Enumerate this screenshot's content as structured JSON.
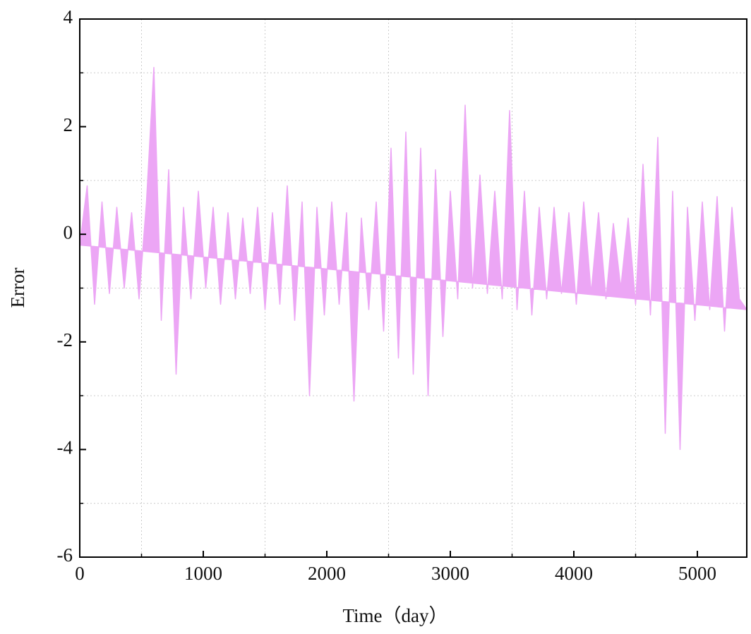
{
  "chart_data": {
    "type": "line",
    "xlabel": "Time（day）",
    "ylabel": "Error",
    "x": [
      0,
      60,
      120,
      180,
      240,
      300,
      360,
      420,
      480,
      540,
      600,
      660,
      720,
      780,
      840,
      900,
      960,
      1020,
      1080,
      1140,
      1200,
      1260,
      1320,
      1380,
      1440,
      1500,
      1560,
      1620,
      1680,
      1740,
      1800,
      1860,
      1920,
      1980,
      2040,
      2100,
      2160,
      2220,
      2280,
      2340,
      2400,
      2460,
      2520,
      2580,
      2640,
      2700,
      2760,
      2820,
      2880,
      2940,
      3000,
      3060,
      3120,
      3180,
      3240,
      3300,
      3360,
      3420,
      3480,
      3540,
      3600,
      3660,
      3720,
      3780,
      3840,
      3900,
      3960,
      4020,
      4080,
      4140,
      4200,
      4260,
      4320,
      4380,
      4440,
      4500,
      4560,
      4620,
      4680,
      4740,
      4800,
      4860,
      4920,
      4980,
      5040,
      5100,
      5160,
      5220,
      5280,
      5340,
      5400
    ],
    "series": [
      {
        "color": "#eca6f5",
        "values": [
          -0.2,
          0.9,
          -1.3,
          0.6,
          -1.1,
          0.5,
          -1.0,
          0.4,
          -1.2,
          0.6,
          3.1,
          -1.6,
          1.2,
          -2.6,
          0.5,
          -1.2,
          0.8,
          -1.0,
          0.5,
          -1.3,
          0.4,
          -1.2,
          0.3,
          -1.1,
          0.5,
          -1.4,
          0.4,
          -1.3,
          0.9,
          -1.6,
          0.6,
          -3.0,
          0.5,
          -1.5,
          0.6,
          -1.3,
          0.4,
          -3.1,
          0.3,
          -1.4,
          0.6,
          -1.8,
          1.6,
          -2.3,
          1.9,
          -2.6,
          1.6,
          -3.0,
          1.2,
          -1.9,
          0.8,
          -1.2,
          2.4,
          -1.0,
          1.1,
          -1.1,
          0.8,
          -1.2,
          2.3,
          -1.4,
          0.8,
          -1.5,
          0.5,
          -1.2,
          0.5,
          -1.1,
          0.4,
          -1.3,
          0.6,
          -1.1,
          0.4,
          -1.2,
          0.2,
          -1.0,
          0.3,
          -1.3,
          1.3,
          -1.5,
          1.8,
          -3.7,
          0.8,
          -4.0,
          0.5,
          -1.6,
          0.6,
          -1.4,
          0.7,
          -1.8,
          0.5,
          -1.2,
          -1.4
        ]
      }
    ],
    "xlim": [
      0,
      5400
    ],
    "xticks": [
      0,
      1000,
      2000,
      3000,
      4000,
      5000
    ],
    "ylim": [
      -6,
      4
    ],
    "yticks": [
      -6,
      -4,
      -2,
      0,
      2,
      4
    ],
    "xgrid": [
      500,
      1500,
      2500,
      3500,
      4500
    ],
    "ygrid": [
      3,
      1,
      -1,
      -3,
      -5
    ]
  }
}
